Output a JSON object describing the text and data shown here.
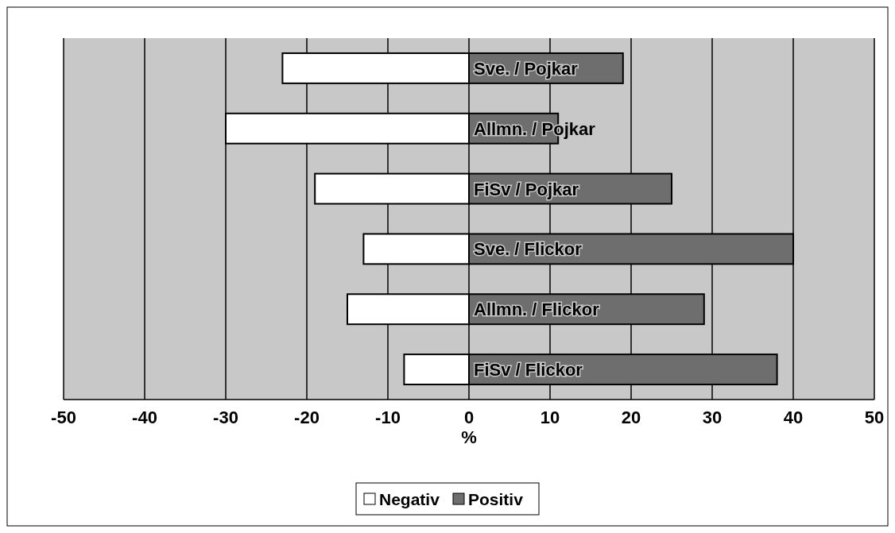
{
  "chart_data": {
    "type": "bar",
    "orientation": "horizontal",
    "stacked": true,
    "xlabel": "%",
    "categories": [
      "Sve. / Pojkar",
      "Allmn. / Pojkar",
      "FiSv / Pojkar",
      "Sve. / Flickor",
      "Allmn. / Flickor",
      "FiSv / Flickor"
    ],
    "series": [
      {
        "name": "Negativ",
        "color": "#ffffff",
        "values": [
          -23,
          -30,
          -19,
          -13,
          -15,
          -8
        ]
      },
      {
        "name": "Positiv",
        "color": "#6e6e6e",
        "values": [
          19,
          11,
          25,
          40,
          29,
          38
        ]
      }
    ],
    "xlim": [
      -50,
      50
    ],
    "xticks": [
      -50,
      -40,
      -30,
      -20,
      -10,
      0,
      10,
      20,
      30,
      40,
      50
    ],
    "grid": "x",
    "legend": "bottom"
  }
}
